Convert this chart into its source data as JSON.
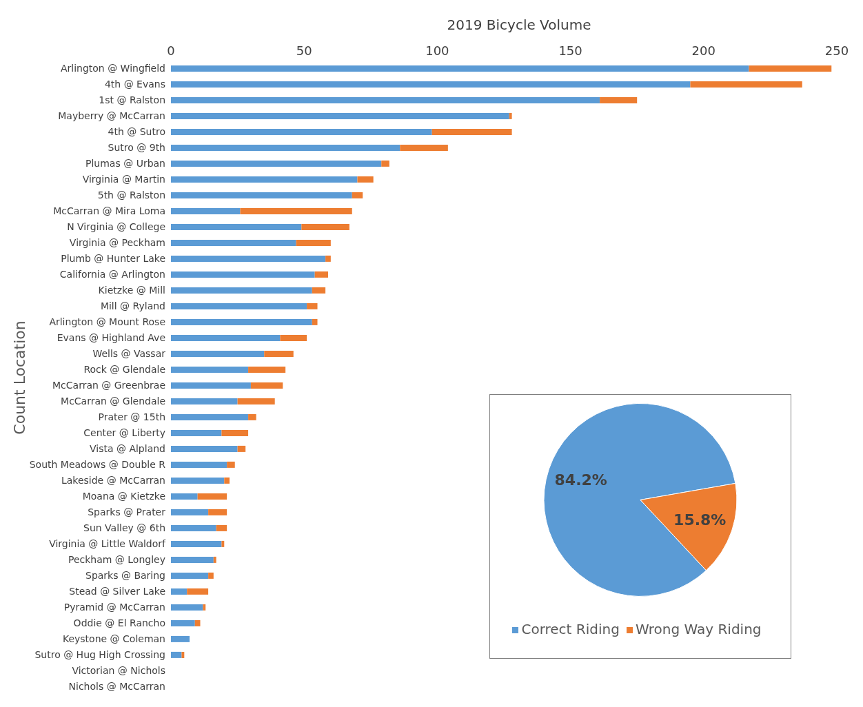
{
  "chart_data": [
    {
      "type": "bar",
      "orientation": "horizontal",
      "stacked": true,
      "title": "2019 Bicycle Volume",
      "ylabel": "Count Location",
      "categories": [
        "Arlington @ Wingfield",
        "4th @ Evans",
        "1st @ Ralston",
        "Mayberry @ McCarran",
        "4th @ Sutro",
        "Sutro @ 9th",
        "Plumas @ Urban",
        "Virginia @ Martin",
        "5th @ Ralston",
        "McCarran @ Mira Loma",
        "N Virginia @ College",
        "Virginia @ Peckham",
        "Plumb @ Hunter Lake",
        "California @ Arlington",
        "Kietzke @ Mill",
        "Mill @ Ryland",
        "Arlington @ Mount Rose",
        "Evans @ Highland Ave",
        "Wells @ Vassar",
        "Rock @ Glendale",
        "McCarran @ Greenbrae",
        "McCarran @ Glendale",
        "Prater @ 15th",
        "Center @ Liberty",
        "Vista @ Alpland",
        "South Meadows @ Double R",
        "Lakeside @ McCarran",
        "Moana @ Kietzke",
        "Sparks @ Prater",
        "Sun Valley @ 6th",
        "Virginia @ Little Waldorf",
        "Peckham @ Longley",
        "Sparks @ Baring",
        "Stead @ Silver Lake",
        "Pyramid @ McCarran",
        "Oddie @ El Rancho",
        "Keystone @ Coleman",
        "Sutro @ Hug High Crossing",
        "Victorian @ Nichols",
        "Nichols @ McCarran"
      ],
      "series": [
        {
          "color": "#5b9bd5",
          "values": [
            217,
            195,
            161,
            127,
            98,
            86,
            79,
            70,
            68,
            26,
            49,
            47,
            58,
            54,
            53,
            51,
            53,
            41,
            35,
            29,
            30,
            25,
            29,
            19,
            25,
            21,
            20,
            10,
            14,
            17,
            19,
            16,
            14,
            6,
            12,
            9,
            7,
            4,
            0,
            0
          ]
        },
        {
          "color": "#ed7d31",
          "values": [
            31,
            42,
            14,
            1,
            30,
            18,
            3,
            6,
            4,
            42,
            18,
            13,
            2,
            5,
            5,
            4,
            2,
            10,
            11,
            14,
            12,
            14,
            3,
            10,
            3,
            3,
            2,
            11,
            7,
            4,
            1,
            1,
            2,
            8,
            1,
            2,
            0,
            1,
            0,
            0
          ]
        }
      ],
      "xlim": [
        0,
        250
      ],
      "xticks": [
        0,
        50,
        100,
        150,
        200,
        250
      ],
      "grid": false
    },
    {
      "type": "pie",
      "categories": [
        "Correct Riding",
        "Wrong Way Riding"
      ],
      "values": [
        84.2,
        15.8
      ],
      "colors": [
        "#5b9bd5",
        "#ed7d31"
      ],
      "value_labels": [
        "84.2%",
        "15.8%"
      ],
      "legend": "bottom"
    }
  ]
}
